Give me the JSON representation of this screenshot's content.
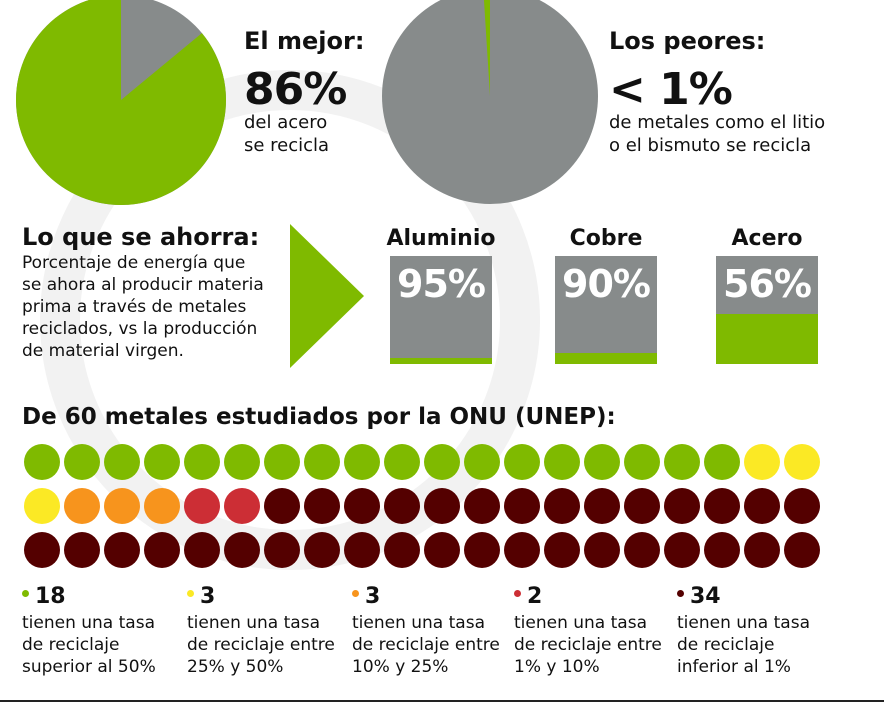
{
  "colors": {
    "green": "#7fba00",
    "gray": "#878b8b",
    "yellow": "#fbe925",
    "orange": "#f7941d",
    "red": "#cc2e35",
    "maroon": "#540000"
  },
  "top": {
    "best": {
      "title": "El mejor:",
      "value": "86%",
      "desc": [
        "del acero",
        "se recicla"
      ]
    },
    "worst": {
      "title": "Los peores:",
      "value": "< 1%",
      "desc": [
        "de metales como el litio",
        "o el bismuto se recicla"
      ]
    }
  },
  "savings": {
    "title": "Lo que se ahorra:",
    "desc": [
      "Porcentaje de energía que",
      "se ahora al producir materia",
      "prima a través de metales",
      "reciclados, vs la producción",
      "de material virgen."
    ],
    "items": [
      {
        "name": "Aluminio",
        "label": "95%"
      },
      {
        "name": "Cobre",
        "label": "90%"
      },
      {
        "name": "Acero",
        "label": "56%"
      }
    ]
  },
  "metals": {
    "title": "De 60 metales estudiados por la ONU (UNEP):",
    "groups": [
      {
        "count": "18",
        "desc": [
          "tienen una tasa",
          "de reciclaje",
          "superior al 50%"
        ]
      },
      {
        "count": "3",
        "desc": [
          "tienen una tasa",
          "de reciclaje entre",
          "25% y 50%"
        ]
      },
      {
        "count": "3",
        "desc": [
          "tienen una tasa",
          "de reciclaje entre",
          "10% y 25%"
        ]
      },
      {
        "count": "2",
        "desc": [
          "tienen una tasa",
          "de reciclaje entre",
          "1% y 10%"
        ]
      },
      {
        "count": "34",
        "desc": [
          "tienen una tasa",
          "de reciclaje",
          "inferior al 1%"
        ]
      }
    ]
  },
  "chart_data": [
    {
      "type": "pie",
      "title": "El mejor:",
      "slices": [
        {
          "label": "reciclado",
          "value": 86
        },
        {
          "label": "no reciclado",
          "value": 14
        }
      ]
    },
    {
      "type": "pie",
      "title": "Los peores:",
      "slices": [
        {
          "label": "reciclado",
          "value": 1
        },
        {
          "label": "no reciclado",
          "value": 99
        }
      ]
    },
    {
      "type": "bar",
      "title": "Lo que se ahorra:",
      "categories": [
        "Aluminio",
        "Cobre",
        "Acero"
      ],
      "values": [
        95,
        90,
        56
      ],
      "ylim": [
        0,
        100
      ]
    },
    {
      "type": "table",
      "title": "De 60 metales estudiados por la ONU (UNEP):",
      "categories": [
        "superior al 50%",
        "25% y 50%",
        "10% y 25%",
        "1% y 10%",
        "inferior al 1%"
      ],
      "values": [
        18,
        3,
        3,
        2,
        34
      ]
    }
  ]
}
